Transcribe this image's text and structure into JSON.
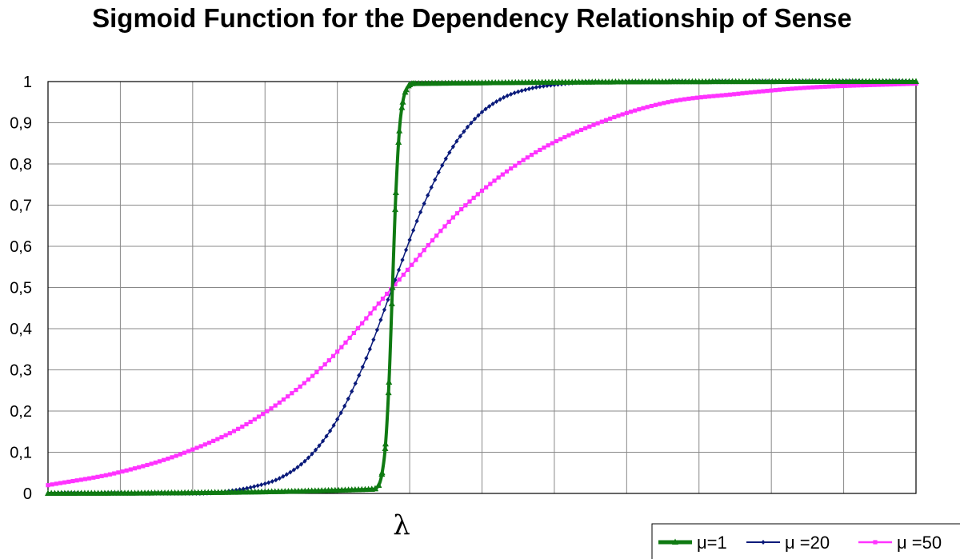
{
  "chart_data": {
    "type": "line",
    "title": "Sigmoid Function for the Dependency Relationship of Sense",
    "xlabel": "",
    "ylabel": "",
    "x_marker_label": "λ",
    "x_range": [
      -25,
      38
    ],
    "x_marker_at": 0,
    "ylim": [
      0,
      1
    ],
    "y_ticks": [
      "0",
      "0,1",
      "0,2",
      "0,3",
      "0,4",
      "0,5",
      "0,6",
      "0,7",
      "0,8",
      "0,9",
      "1"
    ],
    "grid": true,
    "legend_position": "bottom-right",
    "series": [
      {
        "name": "μ=1",
        "color": "#0f7a12",
        "marker": "triangle",
        "x": [
          -25,
          -1.5,
          -1,
          -0.75,
          -0.5,
          -0.25,
          0,
          0.25,
          0.5,
          0.75,
          1,
          1.5,
          38
        ],
        "y": [
          0.0,
          0.01,
          0.02,
          0.05,
          0.12,
          0.27,
          0.5,
          0.73,
          0.88,
          0.95,
          0.98,
          0.995,
          1.0
        ]
      },
      {
        "name": "μ =20",
        "color": "#0a1a7a",
        "marker": "diamond",
        "x": [
          -25,
          -14,
          -12,
          -10,
          -8,
          -6,
          -4,
          -2,
          0,
          2,
          4,
          6,
          8,
          10,
          12,
          14,
          38
        ],
        "y": [
          0.0,
          0.0,
          0.005,
          0.017,
          0.04,
          0.09,
          0.18,
          0.32,
          0.5,
          0.68,
          0.82,
          0.91,
          0.96,
          0.983,
          0.993,
          0.998,
          1.0
        ]
      },
      {
        "name": "μ =50",
        "color": "#ff33ff",
        "marker": "square",
        "x": [
          -25,
          -20,
          -15,
          -10,
          -5,
          0,
          5,
          10,
          15,
          20,
          25,
          30,
          38
        ],
        "y": [
          0.02,
          0.05,
          0.1,
          0.18,
          0.31,
          0.5,
          0.69,
          0.82,
          0.9,
          0.95,
          0.97,
          0.985,
          0.995
        ]
      }
    ]
  }
}
